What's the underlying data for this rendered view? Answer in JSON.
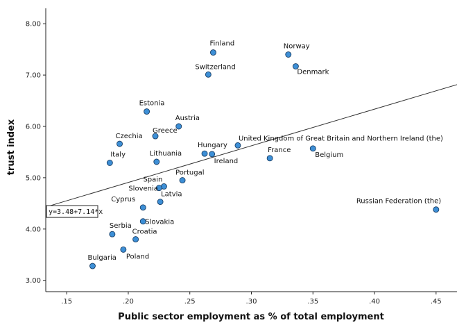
{
  "chart_data": {
    "type": "scatter",
    "xlabel": "Public sector employment as % of total employment",
    "ylabel": "trust index",
    "xlim": [
      0.133,
      0.467
    ],
    "ylim": [
      2.78,
      8.3
    ],
    "x_ticks": [
      {
        "value": 0.15,
        "label": ".15"
      },
      {
        "value": 0.2,
        "label": ".20"
      },
      {
        "value": 0.25,
        "label": ".25"
      },
      {
        "value": 0.3,
        "label": ".30"
      },
      {
        "value": 0.35,
        "label": ".35"
      },
      {
        "value": 0.4,
        "label": ".40"
      },
      {
        "value": 0.45,
        "label": ".45"
      }
    ],
    "y_ticks": [
      {
        "value": 3,
        "label": "3.00"
      },
      {
        "value": 4,
        "label": "4.00"
      },
      {
        "value": 5,
        "label": "5.00"
      },
      {
        "value": 6,
        "label": "6.00"
      },
      {
        "value": 7,
        "label": "7.00"
      },
      {
        "value": 8,
        "label": "8.00"
      }
    ],
    "grid": false,
    "marker_color": "#3d8fd6",
    "points": [
      {
        "name": "Finland",
        "x": 0.269,
        "y": 7.44
      },
      {
        "name": "Norway",
        "x": 0.33,
        "y": 7.4
      },
      {
        "name": "Denmark",
        "x": 0.336,
        "y": 7.17
      },
      {
        "name": "Switzerland",
        "x": 0.265,
        "y": 7.01
      },
      {
        "name": "Estonia",
        "x": 0.215,
        "y": 6.29
      },
      {
        "name": "Austria",
        "x": 0.241,
        "y": 6.0
      },
      {
        "name": "Greece",
        "x": 0.222,
        "y": 5.81
      },
      {
        "name": "Czechia",
        "x": 0.193,
        "y": 5.66
      },
      {
        "name": "United Kingdom of Great Britain and Northern Ireland (the)",
        "x": 0.289,
        "y": 5.63
      },
      {
        "name": "Belgium",
        "x": 0.35,
        "y": 5.57
      },
      {
        "name": "Hungary",
        "x": 0.262,
        "y": 5.47
      },
      {
        "name": "Ireland",
        "x": 0.268,
        "y": 5.46
      },
      {
        "name": "France",
        "x": 0.315,
        "y": 5.38
      },
      {
        "name": "Lithuania",
        "x": 0.223,
        "y": 5.31
      },
      {
        "name": "Italy",
        "x": 0.185,
        "y": 5.29
      },
      {
        "name": "Portugal",
        "x": 0.244,
        "y": 4.95
      },
      {
        "name": "Spain",
        "x": 0.229,
        "y": 4.83
      },
      {
        "name": "Slovenia",
        "x": 0.225,
        "y": 4.8
      },
      {
        "name": "Latvia",
        "x": 0.226,
        "y": 4.53
      },
      {
        "name": "Cyprus",
        "x": 0.212,
        "y": 4.42
      },
      {
        "name": "Russian Federation (the)",
        "x": 0.45,
        "y": 4.38
      },
      {
        "name": "Slovakia",
        "x": 0.212,
        "y": 4.15
      },
      {
        "name": "Serbia",
        "x": 0.187,
        "y": 3.9
      },
      {
        "name": "Croatia",
        "x": 0.206,
        "y": 3.8
      },
      {
        "name": "Poland",
        "x": 0.196,
        "y": 3.6
      },
      {
        "name": "Bulgaria",
        "x": 0.171,
        "y": 3.28
      }
    ],
    "fit_line": {
      "intercept": 3.48,
      "slope": 7.14,
      "equation_label": "y=3.48+7.14*x"
    }
  }
}
